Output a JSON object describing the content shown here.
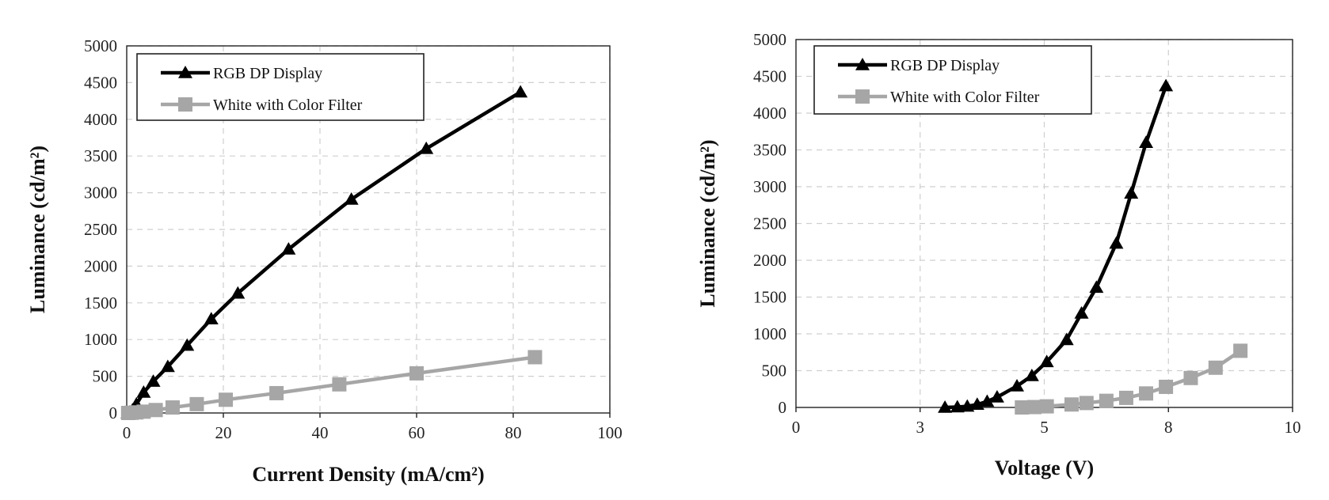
{
  "chart_data": [
    {
      "type": "line",
      "xlabel": "Current Density (mA/cm²)",
      "ylabel": "Luminance (cd/m²)",
      "xlim": [
        0,
        100
      ],
      "ylim": [
        0,
        5000
      ],
      "xticks": [
        "0",
        "20",
        "40",
        "60",
        "80",
        "100"
      ],
      "yticks": [
        "0",
        "500",
        "1000",
        "1500",
        "2000",
        "2500",
        "3000",
        "3500",
        "4000",
        "4500",
        "5000"
      ],
      "grid": true,
      "legend_position": "top-left",
      "series": [
        {
          "name": "RGB DP Display",
          "marker": "triangle",
          "color": "#000000",
          "x": [
            0.2,
            0.6,
            1.2,
            2.0,
            3.5,
            5.5,
            8.5,
            12.5,
            17.5,
            23,
            33.5,
            46.5,
            62,
            81.5
          ],
          "y": [
            0,
            10,
            40,
            120,
            280,
            430,
            630,
            920,
            1280,
            1630,
            2230,
            2910,
            3600,
            4370
          ]
        },
        {
          "name": "White with Color Filter",
          "marker": "square",
          "color": "#a6a6a6",
          "x": [
            0.3,
            1.0,
            2.0,
            3.5,
            6.0,
            9.5,
            14.5,
            20.5,
            31,
            44,
            60,
            84.5
          ],
          "y": [
            0,
            3,
            8,
            18,
            40,
            75,
            120,
            180,
            270,
            390,
            540,
            760
          ]
        }
      ]
    },
    {
      "type": "line",
      "xlabel": "Voltage (V)",
      "ylabel": "Luminance (cd/m²)",
      "xlim": [
        0,
        10
      ],
      "ylim": [
        0,
        5000
      ],
      "xticks": [
        "0",
        "3",
        "5",
        "8",
        "10"
      ],
      "xtick_values": [
        0,
        2.5,
        5,
        7.5,
        10
      ],
      "yticks": [
        "0",
        "500",
        "1000",
        "1500",
        "2000",
        "2500",
        "3000",
        "3500",
        "4000",
        "4500",
        "5000"
      ],
      "grid": true,
      "legend_position": "top-left",
      "series": [
        {
          "name": "RGB DP Display",
          "marker": "triangle",
          "color": "#000000",
          "x": [
            3.0,
            3.25,
            3.45,
            3.65,
            3.85,
            4.05,
            4.45,
            4.75,
            5.05,
            5.45,
            5.75,
            6.05,
            6.45,
            6.75,
            7.05,
            7.45
          ],
          "y": [
            0,
            5,
            15,
            40,
            80,
            140,
            290,
            430,
            620,
            920,
            1280,
            1630,
            2230,
            2910,
            3600,
            4370
          ]
        },
        {
          "name": "White with Color Filter",
          "marker": "square",
          "color": "#a6a6a6",
          "x": [
            4.55,
            4.8,
            5.05,
            5.55,
            5.85,
            6.25,
            6.65,
            7.05,
            7.45,
            7.95,
            8.45,
            8.95
          ],
          "y": [
            0,
            5,
            15,
            40,
            60,
            90,
            130,
            190,
            280,
            400,
            540,
            770
          ]
        }
      ]
    }
  ]
}
